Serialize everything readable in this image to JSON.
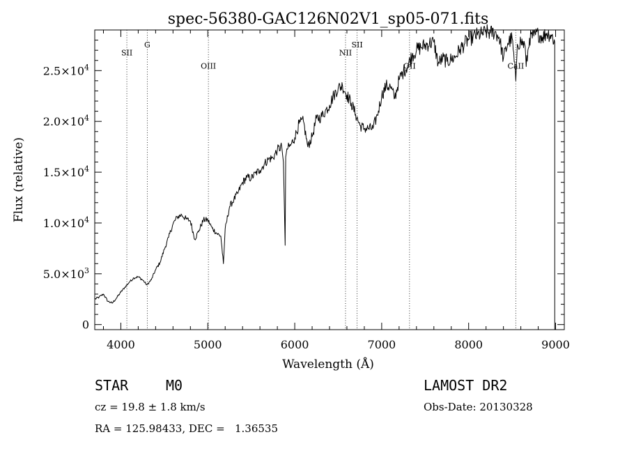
{
  "chart_data": {
    "type": "line",
    "title": "spec-56380-GAC126N02V1_sp05-071.fits",
    "xlabel": "Wavelength (Å)",
    "ylabel": "Flux (relative)",
    "xlim": [
      3700,
      9100
    ],
    "ylim": [
      -500,
      29000
    ],
    "x_ticks": [
      4000,
      5000,
      6000,
      7000,
      8000,
      9000
    ],
    "x_tick_labels": [
      "4000",
      "5000",
      "6000",
      "7000",
      "8000",
      "9000"
    ],
    "y_ticks": [
      0,
      5000,
      10000,
      15000,
      20000,
      25000
    ],
    "y_tick_labels": [
      {
        "mantissa": "0",
        "exp": ""
      },
      {
        "mantissa": "5.0×10",
        "exp": "3"
      },
      {
        "mantissa": "1.0×10",
        "exp": "4"
      },
      {
        "mantissa": "1.5×10",
        "exp": "4"
      },
      {
        "mantissa": "2.0×10",
        "exp": "4"
      },
      {
        "mantissa": "2.5×10",
        "exp": "4"
      }
    ],
    "grid": false,
    "spectral_lines": [
      {
        "name": "SII",
        "wavelength": 4069,
        "label_flux": 26500
      },
      {
        "name": "G",
        "wavelength": 4304,
        "label_flux": 27300
      },
      {
        "name": "OIII",
        "wavelength": 5007,
        "label_flux": 25200
      },
      {
        "name": "NII",
        "wavelength": 6584,
        "label_flux": 26500
      },
      {
        "name": "SII",
        "wavelength": 6717,
        "label_flux": 27300
      },
      {
        "name": "OII",
        "wavelength": 7320,
        "label_flux": 25200
      },
      {
        "name": "CaII",
        "wavelength": 8542,
        "label_flux": 25200
      }
    ],
    "series": [
      {
        "x": [
          3700,
          3750,
          3800,
          3850,
          3900,
          3950,
          4000,
          4050,
          4100,
          4150,
          4200,
          4250,
          4300,
          4350,
          4400,
          4450,
          4500,
          4550,
          4600,
          4650,
          4700,
          4750,
          4800,
          4850,
          4900,
          4950,
          5000,
          5050,
          5100,
          5150,
          5180,
          5200,
          5250,
          5300,
          5350,
          5400,
          5450,
          5500,
          5550,
          5600,
          5650,
          5700,
          5750,
          5800,
          5850,
          5870,
          5890,
          5896,
          5910,
          5950,
          6000,
          6050,
          6100,
          6150,
          6200,
          6250,
          6300,
          6350,
          6400,
          6450,
          6500,
          6550,
          6600,
          6650,
          6700,
          6750,
          6800,
          6850,
          6900,
          6950,
          7000,
          7050,
          7100,
          7150,
          7200,
          7250,
          7300,
          7350,
          7400,
          7450,
          7500,
          7550,
          7600,
          7650,
          7700,
          7750,
          7800,
          7850,
          7900,
          7950,
          8000,
          8050,
          8100,
          8150,
          8200,
          8250,
          8300,
          8350,
          8400,
          8450,
          8500,
          8542,
          8560,
          8600,
          8650,
          8662,
          8700,
          8750,
          8800,
          8850,
          8900,
          8950,
          8990
        ],
        "y": [
          2500,
          2700,
          3000,
          2300,
          2100,
          2600,
          3200,
          3700,
          4200,
          4600,
          4700,
          4400,
          3900,
          4400,
          5400,
          6100,
          7400,
          8600,
          9900,
          10600,
          10800,
          10400,
          10200,
          8400,
          9300,
          10300,
          10300,
          9500,
          9000,
          8700,
          6000,
          9400,
          11600,
          12300,
          13000,
          14000,
          14500,
          14400,
          14900,
          15200,
          15800,
          16300,
          16400,
          17200,
          17500,
          16000,
          7800,
          16500,
          17300,
          17600,
          18400,
          19800,
          20000,
          17500,
          18500,
          20300,
          20400,
          21000,
          21600,
          22600,
          23300,
          23500,
          22600,
          21800,
          20700,
          19600,
          19300,
          19300,
          19300,
          20600,
          22500,
          23500,
          23400,
          22300,
          24100,
          24900,
          25500,
          26500,
          27000,
          27300,
          27500,
          27700,
          27800,
          25700,
          26200,
          25900,
          26100,
          26400,
          27100,
          27600,
          28100,
          28300,
          28500,
          28600,
          28800,
          28700,
          28800,
          28300,
          26200,
          27700,
          28200,
          24000,
          27600,
          27900,
          27400,
          25400,
          28200,
          28400,
          28600,
          28300,
          28700,
          28500,
          27800
        ]
      }
    ]
  },
  "footer": {
    "object_class": "STAR",
    "subclass": "M0",
    "survey": "LAMOST DR2",
    "redshift": "cz = 19.8 ± 1.8 km/s",
    "obs_date": "Obs-Date: 20130328",
    "coords": "RA = 125.98433, DEC =   1.36535"
  }
}
